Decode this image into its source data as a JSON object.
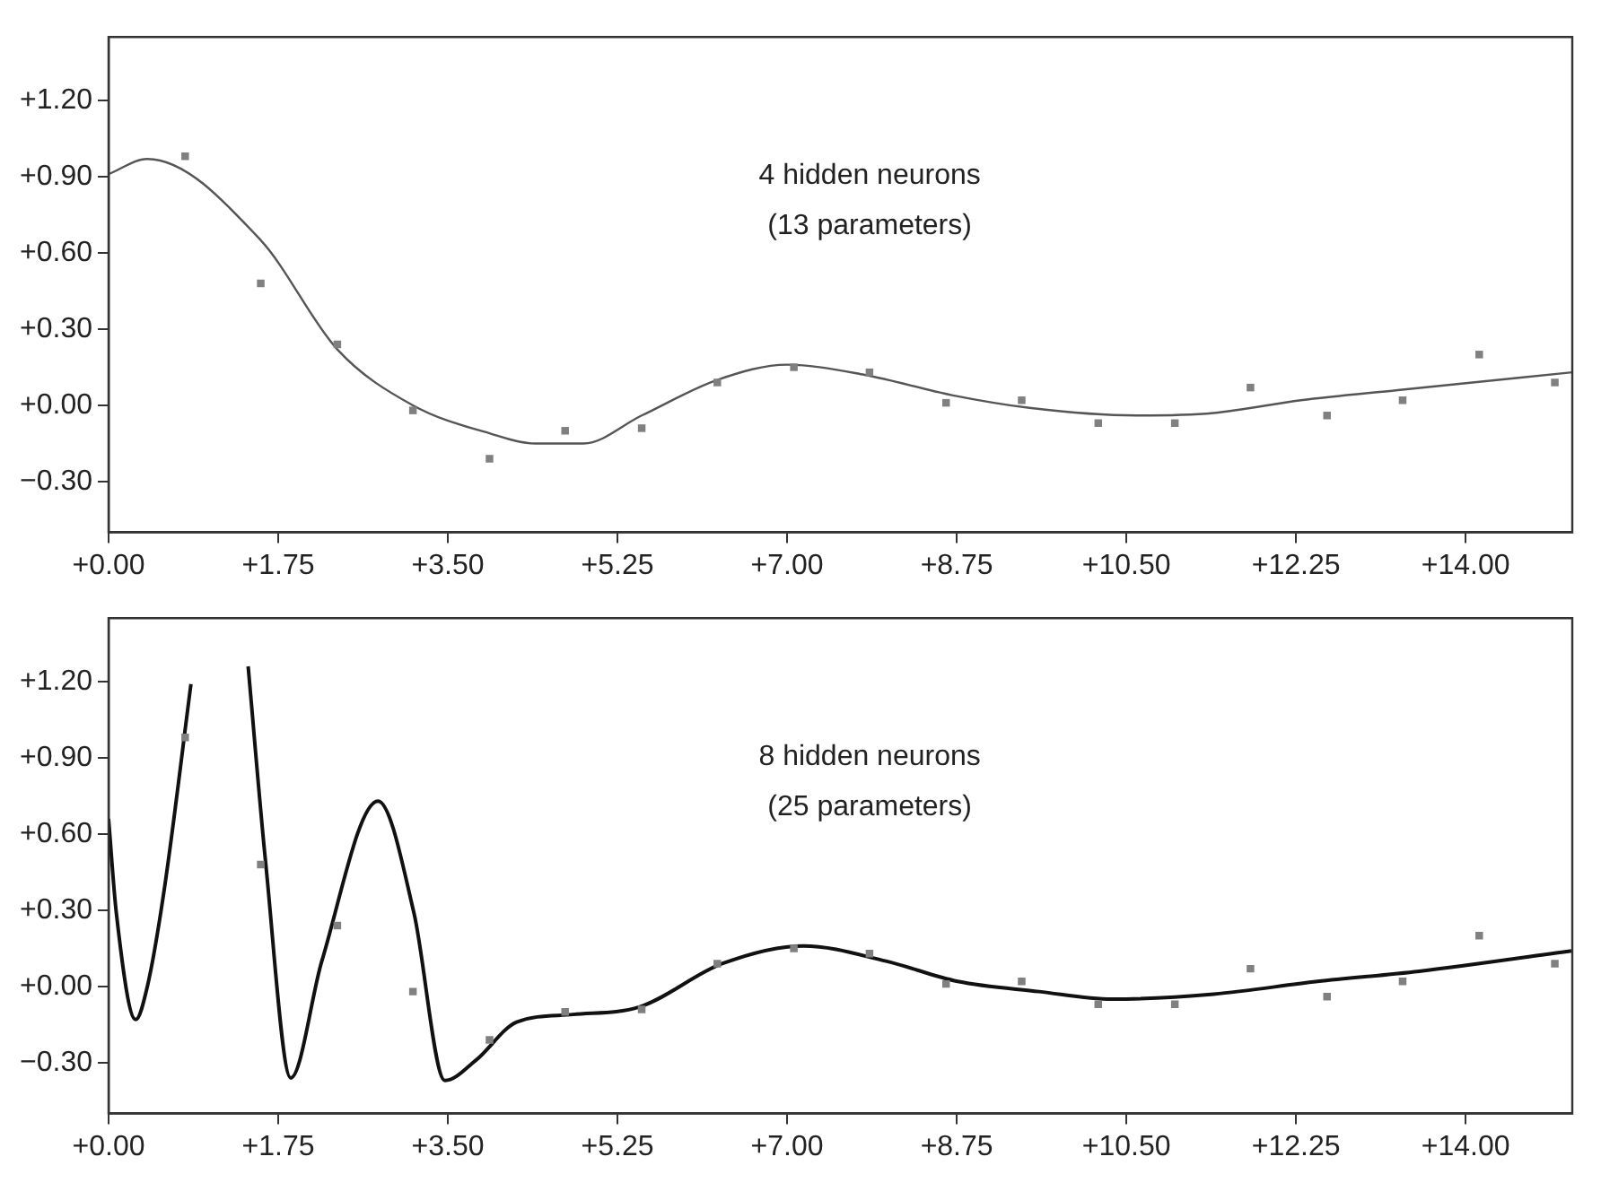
{
  "chart_data": [
    {
      "type": "line",
      "annotations": [
        "4 hidden neurons",
        "(13 parameters)"
      ],
      "xlim": [
        0,
        15.1
      ],
      "xticks": [
        {
          "value": 0,
          "label": "+0.00"
        },
        {
          "value": 1.75,
          "label": "+1.75"
        },
        {
          "value": 3.5,
          "label": "+3.50"
        },
        {
          "value": 5.25,
          "label": "+5.25"
        },
        {
          "value": 7,
          "label": "+7.00"
        },
        {
          "value": 8.75,
          "label": "+8.75"
        },
        {
          "value": 10.5,
          "label": "+10.50"
        },
        {
          "value": 12.25,
          "label": "+12.25"
        },
        {
          "value": 14,
          "label": "+14.00"
        }
      ],
      "ylim": [
        -0.5,
        1.45
      ],
      "yticks": [
        {
          "value": -0.3,
          "label": "−0.30"
        },
        {
          "value": 0,
          "label": "+0.00"
        },
        {
          "value": 0.3,
          "label": "+0.30"
        },
        {
          "value": 0.6,
          "label": "+0.60"
        },
        {
          "value": 0.9,
          "label": "+0.90"
        },
        {
          "value": 1.2,
          "label": "+1.20"
        }
      ],
      "grid": false,
      "series": [
        {
          "color": "#555555",
          "line_style": "solid",
          "marker": "none",
          "x": [
            0,
            0.4,
            1.57,
            2.36,
            3.14,
            3.93,
            4.4,
            4.9,
            5.5,
            6.28,
            7.0,
            7.8,
            8.7,
            9.5,
            10.6,
            11.4,
            12.3,
            13.3,
            15.1
          ],
          "values": [
            0.91,
            0.97,
            0.65,
            0.22,
            0.0,
            -0.11,
            -0.15,
            -0.15,
            -0.04,
            0.1,
            0.16,
            0.12,
            0.04,
            -0.01,
            -0.04,
            -0.03,
            0.02,
            0.06,
            0.13
          ]
        },
        {
          "type": "scatter",
          "color": "#808080",
          "marker": "square",
          "x": [
            0.79,
            1.57,
            2.36,
            3.14,
            3.93,
            4.71,
            5.5,
            6.28,
            7.07,
            7.85,
            8.64,
            9.42,
            10.21,
            11.0,
            11.78,
            12.57,
            13.35,
            14.14,
            14.92
          ],
          "values": [
            0.98,
            0.48,
            0.24,
            -0.02,
            -0.21,
            -0.1,
            -0.09,
            0.09,
            0.15,
            0.13,
            0.01,
            0.02,
            -0.07,
            -0.07,
            0.07,
            -0.04,
            0.02,
            0.2,
            0.09
          ]
        }
      ]
    },
    {
      "type": "line",
      "annotations": [
        "8 hidden neurons",
        "(25 parameters)"
      ],
      "xlim": [
        0,
        15.1
      ],
      "xticks": [
        {
          "value": 0,
          "label": "+0.00"
        },
        {
          "value": 1.75,
          "label": "+1.75"
        },
        {
          "value": 3.5,
          "label": "+3.50"
        },
        {
          "value": 5.25,
          "label": "+5.25"
        },
        {
          "value": 7,
          "label": "+7.00"
        },
        {
          "value": 8.75,
          "label": "+8.75"
        },
        {
          "value": 10.5,
          "label": "+10.50"
        },
        {
          "value": 12.25,
          "label": "+12.25"
        },
        {
          "value": 14,
          "label": "+14.00"
        }
      ],
      "ylim": [
        -0.5,
        1.45
      ],
      "yticks": [
        {
          "value": -0.3,
          "label": "−0.30"
        },
        {
          "value": 0,
          "label": "+0.00"
        },
        {
          "value": 0.3,
          "label": "+0.30"
        },
        {
          "value": 0.6,
          "label": "+0.60"
        },
        {
          "value": 0.9,
          "label": "+0.90"
        },
        {
          "value": 1.2,
          "label": "+1.20"
        }
      ],
      "grid": false,
      "series": [
        {
          "color": "#111111",
          "line_style": "solid",
          "marker": "none",
          "x": [
            0,
            0.08,
            0.28,
            0.4,
            0.57,
            0.85,
            1.15,
            1.44,
            1.62,
            1.88,
            2.2,
            2.78,
            3.15,
            3.47,
            3.79,
            4.21,
            4.79,
            5.48,
            6.33,
            7.17,
            8.02,
            8.76,
            9.6,
            10.35,
            11.4,
            12.47,
            13.52,
            15.09
          ],
          "values": [
            0.66,
            0.29,
            -0.13,
            0.0,
            0.37,
            1.19,
            null,
            1.26,
            0.49,
            -0.36,
            0.1,
            0.73,
            0.29,
            -0.37,
            -0.29,
            -0.14,
            -0.11,
            -0.08,
            0.09,
            0.16,
            0.1,
            0.02,
            -0.02,
            -0.05,
            -0.03,
            0.02,
            0.06,
            0.14
          ]
        },
        {
          "type": "scatter",
          "color": "#808080",
          "marker": "square",
          "x": [
            0.79,
            1.57,
            2.36,
            3.14,
            3.93,
            4.71,
            5.5,
            6.28,
            7.07,
            7.85,
            8.64,
            9.42,
            10.21,
            11.0,
            11.78,
            12.57,
            13.35,
            14.14,
            14.92
          ],
          "values": [
            0.98,
            0.48,
            0.24,
            -0.02,
            -0.21,
            -0.1,
            -0.09,
            0.09,
            0.15,
            0.13,
            0.01,
            0.02,
            -0.07,
            -0.07,
            0.07,
            -0.04,
            0.02,
            0.2,
            0.09
          ]
        }
      ]
    }
  ]
}
